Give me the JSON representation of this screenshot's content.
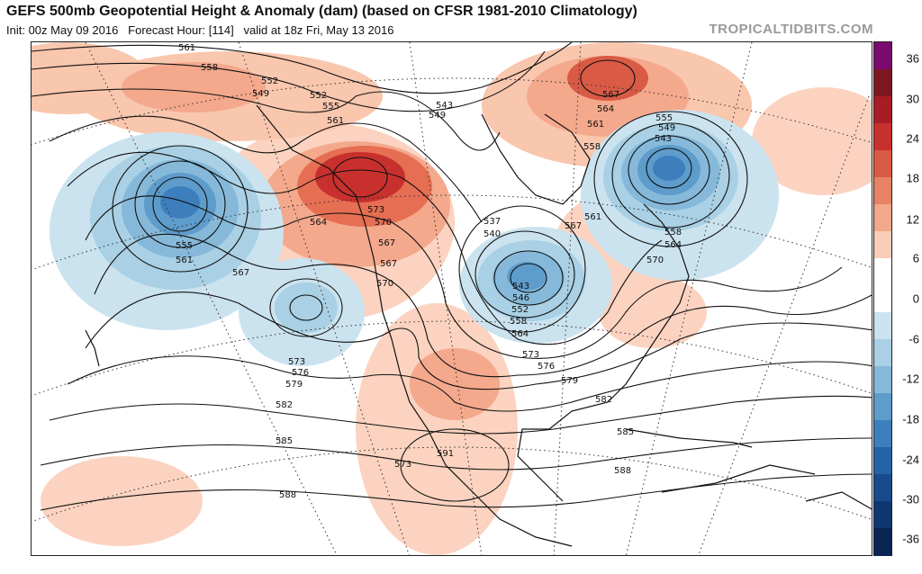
{
  "header": {
    "title": "GEFS 500mb Geopotential Height & Anomaly (dam) (based on CFSR 1981-2010 Climatology)",
    "init": "Init: 00z May 09 2016",
    "forecast_hour": "Forecast Hour: [114]",
    "valid": "valid at 18z Fri, May 13 2016",
    "brand": "TROPICALTIDBITS.COM"
  },
  "colorbar": {
    "labels": [
      "36",
      "30",
      "24",
      "18",
      "12",
      "6",
      "0",
      "-6",
      "-12",
      "-18",
      "-24",
      "-30",
      "-36"
    ],
    "colors": [
      "#7a0a6e",
      "#7e1620",
      "#a81c26",
      "#c8302e",
      "#d95a45",
      "#e88265",
      "#f2a88a",
      "#f9cdb8",
      "#ffffff",
      "#ffffff",
      "#cbe3ef",
      "#a9d0e4",
      "#86b9d9",
      "#5e9ccc",
      "#3d7fbd",
      "#2563a8",
      "#184b8c",
      "#0f3670",
      "#0a2454"
    ]
  },
  "contours": {
    "labels": [
      "561",
      "558",
      "552",
      "549",
      "552",
      "555",
      "561",
      "543",
      "549",
      "567",
      "564",
      "561",
      "558",
      "555",
      "549",
      "543",
      "537",
      "540",
      "543",
      "546",
      "552",
      "558",
      "564",
      "573",
      "570",
      "567",
      "567",
      "570",
      "564",
      "555",
      "561",
      "567",
      "573",
      "576",
      "579",
      "582",
      "585",
      "588",
      "591",
      "573",
      "576",
      "579",
      "582",
      "585",
      "588",
      "567",
      "561",
      "558",
      "564",
      "570",
      "573"
    ]
  }
}
